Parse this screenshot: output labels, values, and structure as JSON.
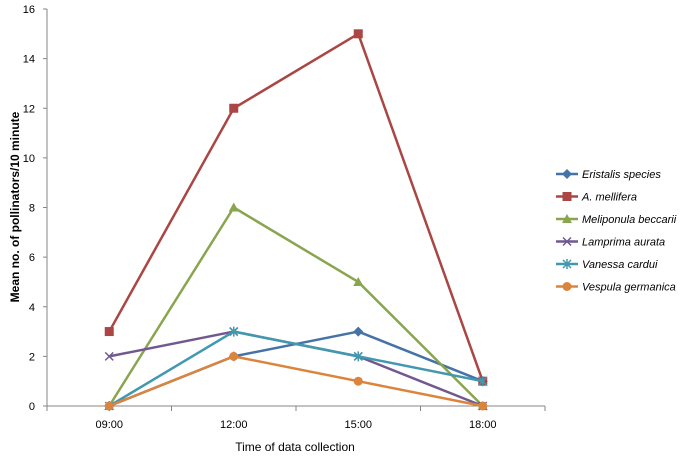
{
  "chart_data": {
    "type": "line",
    "categories": [
      "09:00",
      "12:00",
      "15:00",
      "18:00"
    ],
    "xlabel": "Time of data collection",
    "ylabel": "Mean no. of pollinators/10 minute",
    "ylim": [
      0,
      16
    ],
    "yticks": [
      0,
      2,
      4,
      6,
      8,
      10,
      12,
      14,
      16
    ],
    "grid": false,
    "legend_position": "right",
    "series": [
      {
        "name": "Eristalis species",
        "values": [
          0,
          2,
          3,
          1
        ],
        "color": "#4572A7",
        "marker": "diamond"
      },
      {
        "name": "A. mellifera",
        "values": [
          3,
          12,
          15,
          1
        ],
        "color": "#AA4643",
        "marker": "square"
      },
      {
        "name": "Meliponula beccarii",
        "values": [
          0,
          8,
          5,
          0
        ],
        "color": "#89A54E",
        "marker": "triangle"
      },
      {
        "name": "Lamprima aurata",
        "values": [
          2,
          3,
          2,
          0
        ],
        "color": "#71588F",
        "marker": "x"
      },
      {
        "name": "Vanessa cardui",
        "values": [
          0,
          3,
          2,
          1
        ],
        "color": "#4198AF",
        "marker": "star"
      },
      {
        "name": "Vespula germanica",
        "values": [
          0,
          2,
          1,
          0
        ],
        "color": "#DB843D",
        "marker": "circle"
      }
    ]
  }
}
